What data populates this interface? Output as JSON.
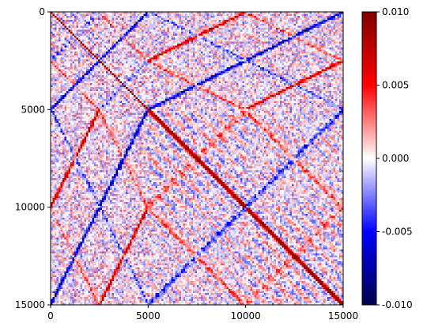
{
  "chart_data": {
    "type": "heatmap",
    "title": "",
    "xlabel": "",
    "ylabel": "",
    "colormap": "seismic",
    "x_range": [
      0,
      15000
    ],
    "y_range": [
      15000,
      0
    ],
    "y_inverted": true,
    "grid": false,
    "x_ticks": [
      0,
      5000,
      10000,
      15000
    ],
    "x_tick_labels": [
      "0",
      "5000",
      "10000",
      "15000"
    ],
    "y_ticks": [
      0,
      5000,
      10000,
      15000
    ],
    "y_tick_labels": [
      "0",
      "5000",
      "10000",
      "15000"
    ],
    "block_boundaries": [
      0,
      2500,
      5000,
      10000,
      15000
    ],
    "colorbar": {
      "range": [
        -0.01,
        0.01
      ],
      "ticks": [
        0.01,
        0.005,
        0.0,
        -0.005,
        -0.01
      ],
      "tick_labels": [
        "0.010",
        "0.005",
        "0.000",
        "-0.005",
        "-0.010"
      ],
      "colors": {
        "min": "#00004c",
        "low": "#0000ff",
        "zero": "#ffffff",
        "high": "#ff0000",
        "max": "#800000"
      }
    },
    "structure_notes": {
      "main_diagonal": "positive (red) band along i = j in every block",
      "anti_diagonals": "chevron patterns mirrored at block centers",
      "strong_negative_blocks": "blue anti-diagonal bands in off-diagonal 2500-wide blocks"
    }
  }
}
